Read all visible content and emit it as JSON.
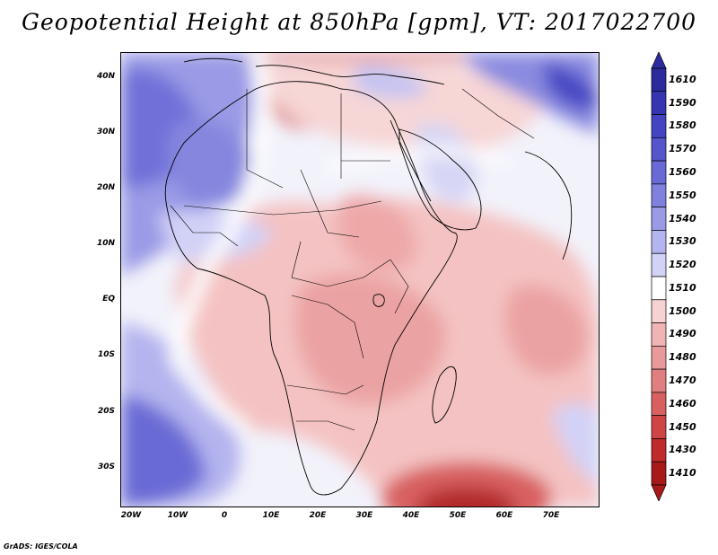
{
  "title": "Geopotential Height at 850hPa [gpm], VT: 2017022700",
  "credit": "GrADS: IGES/COLA",
  "axes": {
    "lat_labels": [
      "40N",
      "30N",
      "20N",
      "10N",
      "EQ",
      "10S",
      "20S",
      "30S"
    ],
    "lat_values": [
      40,
      30,
      20,
      10,
      0,
      -10,
      -20,
      -30
    ],
    "lon_labels": [
      "20W",
      "10W",
      "0",
      "10E",
      "20E",
      "30E",
      "40E",
      "50E",
      "60E",
      "70E"
    ],
    "lon_values": [
      -20,
      -10,
      0,
      10,
      20,
      30,
      40,
      50,
      60,
      70
    ],
    "lon_range": [
      -22,
      80
    ],
    "lat_range": [
      -37,
      45
    ]
  },
  "colorbar": {
    "labels": [
      "1610",
      "1590",
      "1580",
      "1570",
      "1560",
      "1550",
      "1540",
      "1530",
      "1520",
      "1510",
      "1500",
      "1490",
      "1480",
      "1470",
      "1460",
      "1450",
      "1430",
      "1410"
    ],
    "colors": [
      "#2b2b9e",
      "#3535b2",
      "#4444c2",
      "#5555cc",
      "#6a6ad6",
      "#8080de",
      "#9a9ae6",
      "#b4b4ef",
      "#d2d2f7",
      "#ffffff",
      "#f7d2d2",
      "#f0b4b4",
      "#e89a9a",
      "#e07f7f",
      "#d86060",
      "#cf4545",
      "#c02a2a",
      "#a81a1a"
    ]
  },
  "field_colors": {
    "background": "#f2f2fb",
    "coast": "#000000"
  }
}
